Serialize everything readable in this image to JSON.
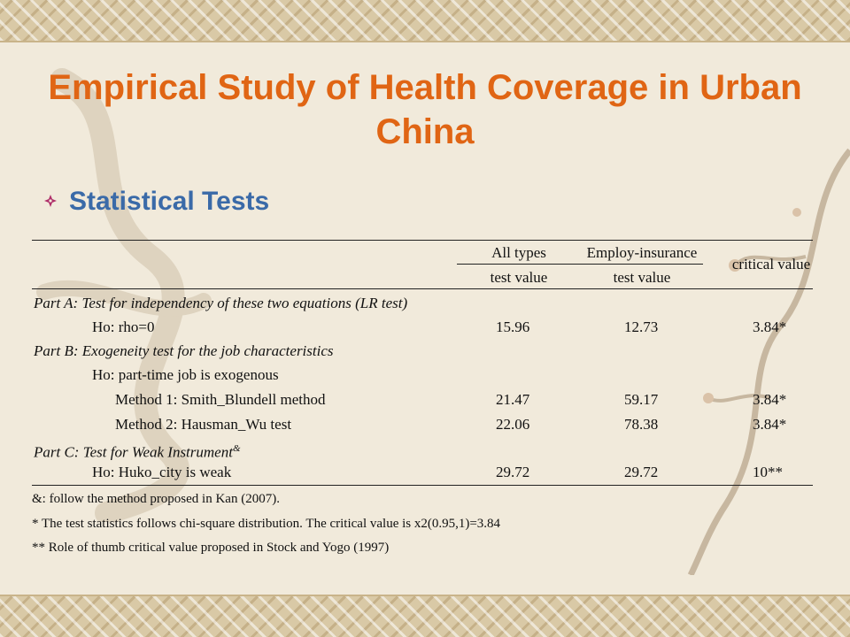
{
  "slide": {
    "title": "Empirical Study of Health Coverage in Urban China",
    "subtitle": "Statistical Tests"
  },
  "table": {
    "headers": {
      "all_types": "All types",
      "employ_insurance": "Employ-insurance",
      "critical_value": "critical value",
      "test_value_1": "test value",
      "test_value_2": "test value"
    },
    "rows": [
      {
        "label": "Part A: Test for independency of these two equations (LR test)",
        "kind": "section"
      },
      {
        "label": "Ho: rho=0",
        "all": "15.96",
        "employ": "12.73",
        "critical": "3.84*"
      },
      {
        "label": "Part B: Exogeneity test for the job characteristics",
        "kind": "section"
      },
      {
        "label": "Ho: part-time job is exogenous"
      },
      {
        "label": "Method 1: Smith_Blundell method",
        "all": "21.47",
        "employ": "59.17",
        "critical": "3.84*"
      },
      {
        "label": "Method 2: Hausman_Wu test",
        "all": "22.06",
        "employ": "78.38",
        "critical": "3.84*"
      },
      {
        "label": "Part C: Test for Weak Instrument",
        "sup": "&",
        "kind": "section"
      },
      {
        "label": "Ho: Huko_city is weak",
        "all": "29.72",
        "employ": "29.72",
        "critical": "10**"
      }
    ]
  },
  "notes": [
    "&: follow the method proposed in Kan (2007).",
    "* The test statistics follows chi-square distribution. The critical value is x2(0.95,1)=3.84",
    "** Role of thumb critical value proposed in Stock and Yogo (1997)"
  ]
}
